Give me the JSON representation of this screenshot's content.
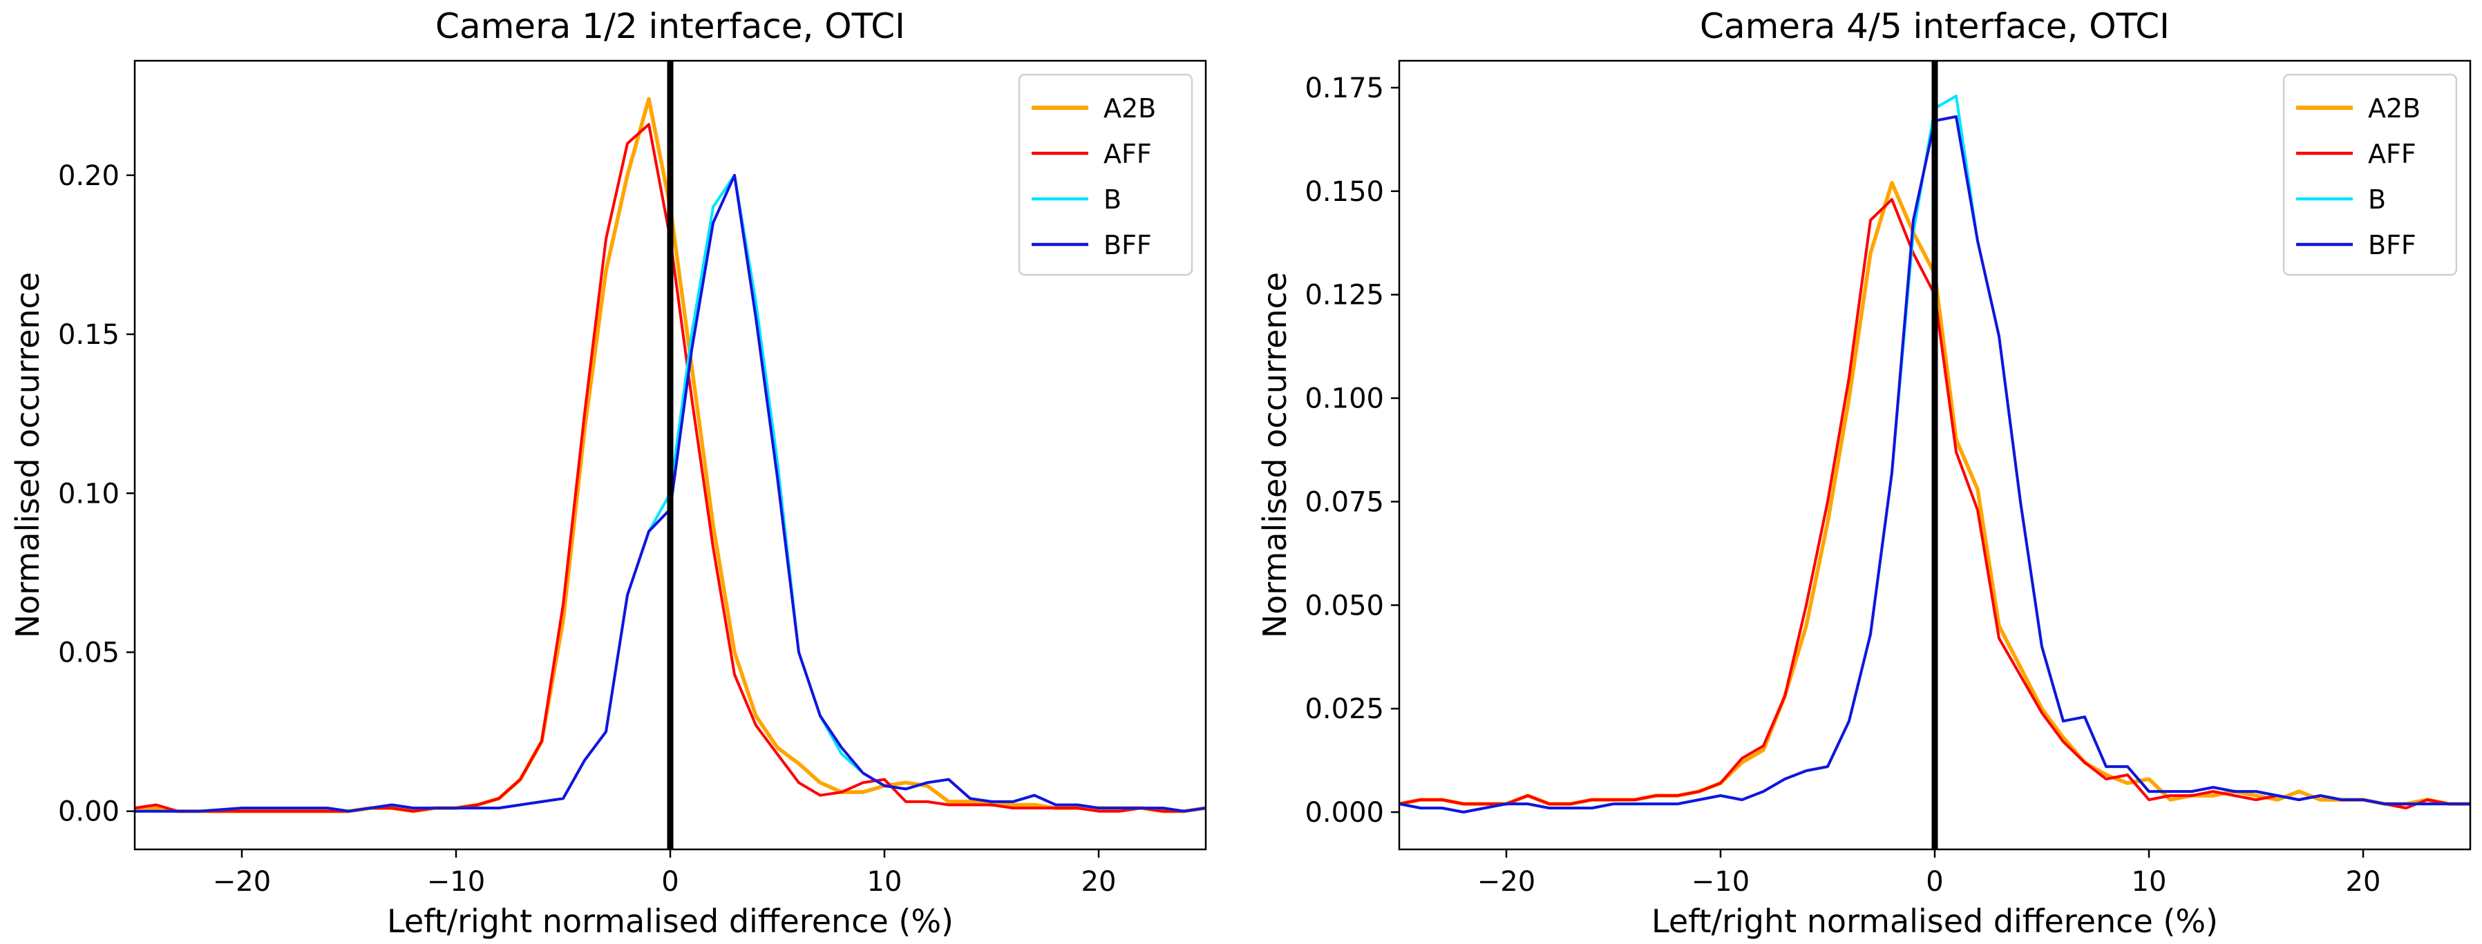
{
  "chart_data": [
    {
      "type": "line",
      "title": "Camera 1/2 interface, OTCI",
      "xlabel": "Left/right normalised difference (%)",
      "ylabel": "Normalised occurrence",
      "xlim": [
        -25,
        25
      ],
      "ylim": [
        -0.012,
        0.236
      ],
      "xticks": [
        -20,
        -10,
        0,
        10,
        20
      ],
      "xtick_labels": [
        "−20",
        "−10",
        "0",
        "10",
        "20"
      ],
      "yticks": [
        0.0,
        0.05,
        0.1,
        0.15,
        0.2
      ],
      "ytick_labels": [
        "0.00",
        "0.05",
        "0.10",
        "0.15",
        "0.20"
      ],
      "vline_x": 0,
      "grid": false,
      "legend_position": "top-right",
      "series": [
        {
          "name": "A2B",
          "color": "#ffa500",
          "x": [
            -25,
            -24,
            -23,
            -22,
            -20,
            -18,
            -16,
            -15,
            -14,
            -13,
            -12,
            -11,
            -10,
            -9,
            -8,
            -7,
            -6,
            -5,
            -4,
            -3,
            -2,
            -1,
            0,
            1,
            2,
            3,
            4,
            5,
            6,
            7,
            8,
            9,
            10,
            11,
            12,
            13,
            14,
            15,
            16,
            17,
            18,
            19,
            20,
            21,
            22,
            23,
            24,
            25
          ],
          "y": [
            0.001,
            0.001,
            0.0,
            0.0,
            0.0,
            0.0,
            0.0,
            0.0,
            0.001,
            0.001,
            0.0,
            0.001,
            0.001,
            0.002,
            0.004,
            0.01,
            0.022,
            0.06,
            0.12,
            0.17,
            0.2,
            0.224,
            0.19,
            0.14,
            0.09,
            0.05,
            0.03,
            0.02,
            0.015,
            0.009,
            0.006,
            0.006,
            0.008,
            0.009,
            0.008,
            0.003,
            0.003,
            0.002,
            0.002,
            0.002,
            0.001,
            0.001,
            0.001,
            0.001,
            0.001,
            0.0,
            0.0,
            0.001
          ]
        },
        {
          "name": "AFF",
          "color": "#ff0000",
          "x": [
            -25,
            -24,
            -23,
            -22,
            -20,
            -18,
            -16,
            -15,
            -14,
            -13,
            -12,
            -11,
            -10,
            -9,
            -8,
            -7,
            -6,
            -5,
            -4,
            -3,
            -2,
            -1,
            0,
            1,
            2,
            3,
            4,
            5,
            6,
            7,
            8,
            9,
            10,
            11,
            12,
            13,
            14,
            15,
            16,
            17,
            18,
            19,
            20,
            21,
            22,
            23,
            24,
            25
          ],
          "y": [
            0.001,
            0.002,
            0.0,
            0.0,
            0.0,
            0.0,
            0.0,
            0.0,
            0.001,
            0.001,
            0.0,
            0.001,
            0.001,
            0.002,
            0.004,
            0.01,
            0.022,
            0.065,
            0.125,
            0.18,
            0.21,
            0.216,
            0.18,
            0.13,
            0.083,
            0.043,
            0.027,
            0.018,
            0.009,
            0.005,
            0.006,
            0.009,
            0.01,
            0.003,
            0.003,
            0.002,
            0.002,
            0.002,
            0.001,
            0.001,
            0.001,
            0.001,
            0.0,
            0.0,
            0.001,
            0.0,
            0.0,
            0.001
          ]
        },
        {
          "name": "B",
          "color": "#00e5ff",
          "x": [
            -25,
            -24,
            -23,
            -22,
            -20,
            -18,
            -16,
            -15,
            -14,
            -13,
            -12,
            -11,
            -10,
            -9,
            -8,
            -7,
            -6,
            -5,
            -4,
            -3,
            -2,
            -1,
            0,
            1,
            2,
            3,
            4,
            5,
            6,
            7,
            8,
            9,
            10,
            11,
            12,
            13,
            14,
            15,
            16,
            17,
            18,
            19,
            20,
            21,
            22,
            23,
            24,
            25
          ],
          "y": [
            0.0,
            0.0,
            0.0,
            0.0,
            0.001,
            0.001,
            0.001,
            0.0,
            0.001,
            0.002,
            0.001,
            0.001,
            0.001,
            0.001,
            0.001,
            0.002,
            0.003,
            0.004,
            0.016,
            0.025,
            0.068,
            0.088,
            0.1,
            0.15,
            0.19,
            0.2,
            0.16,
            0.11,
            0.05,
            0.03,
            0.018,
            0.012,
            0.008,
            0.007,
            0.009,
            0.01,
            0.004,
            0.003,
            0.003,
            0.005,
            0.002,
            0.002,
            0.001,
            0.001,
            0.001,
            0.001,
            0.0,
            0.001
          ]
        },
        {
          "name": "BFF",
          "color": "#1414dc",
          "x": [
            -25,
            -24,
            -23,
            -22,
            -20,
            -18,
            -16,
            -15,
            -14,
            -13,
            -12,
            -11,
            -10,
            -9,
            -8,
            -7,
            -6,
            -5,
            -4,
            -3,
            -2,
            -1,
            0,
            1,
            2,
            3,
            4,
            5,
            6,
            7,
            8,
            9,
            10,
            11,
            12,
            13,
            14,
            15,
            16,
            17,
            18,
            19,
            20,
            21,
            22,
            23,
            24,
            25
          ],
          "y": [
            0.0,
            0.0,
            0.0,
            0.0,
            0.001,
            0.001,
            0.001,
            0.0,
            0.001,
            0.002,
            0.001,
            0.001,
            0.001,
            0.001,
            0.001,
            0.002,
            0.003,
            0.004,
            0.016,
            0.025,
            0.068,
            0.088,
            0.095,
            0.145,
            0.185,
            0.2,
            0.155,
            0.105,
            0.05,
            0.03,
            0.02,
            0.012,
            0.008,
            0.007,
            0.009,
            0.01,
            0.004,
            0.003,
            0.003,
            0.005,
            0.002,
            0.002,
            0.001,
            0.001,
            0.001,
            0.001,
            0.0,
            0.001
          ]
        }
      ]
    },
    {
      "type": "line",
      "title": "Camera 4/5 interface, OTCI",
      "xlabel": "Left/right normalised difference (%)",
      "ylabel": "Normalised occurrence",
      "xlim": [
        -25,
        25
      ],
      "ylim": [
        -0.009,
        0.1815
      ],
      "xticks": [
        -20,
        -10,
        0,
        10,
        20
      ],
      "xtick_labels": [
        "−20",
        "−10",
        "0",
        "10",
        "20"
      ],
      "yticks": [
        0.0,
        0.025,
        0.05,
        0.075,
        0.1,
        0.125,
        0.15,
        0.175
      ],
      "ytick_labels": [
        "0.000",
        "0.025",
        "0.050",
        "0.075",
        "0.100",
        "0.125",
        "0.150",
        "0.175"
      ],
      "vline_x": 0,
      "grid": false,
      "legend_position": "top-right",
      "series": [
        {
          "name": "A2B",
          "color": "#ffa500",
          "x": [
            -25,
            -24,
            -23,
            -22,
            -20,
            -19,
            -18,
            -17,
            -16,
            -15,
            -14,
            -13,
            -12,
            -11,
            -10,
            -9,
            -8,
            -7,
            -6,
            -5,
            -4,
            -3,
            -2,
            -1,
            0,
            1,
            2,
            3,
            4,
            5,
            6,
            7,
            8,
            9,
            10,
            11,
            12,
            13,
            14,
            15,
            16,
            17,
            18,
            19,
            20,
            21,
            22,
            23,
            24,
            25
          ],
          "y": [
            0.002,
            0.003,
            0.003,
            0.002,
            0.002,
            0.004,
            0.002,
            0.002,
            0.003,
            0.003,
            0.003,
            0.004,
            0.004,
            0.005,
            0.007,
            0.012,
            0.015,
            0.028,
            0.045,
            0.07,
            0.1,
            0.135,
            0.152,
            0.14,
            0.13,
            0.09,
            0.078,
            0.045,
            0.035,
            0.025,
            0.018,
            0.012,
            0.009,
            0.007,
            0.008,
            0.003,
            0.004,
            0.004,
            0.005,
            0.004,
            0.003,
            0.005,
            0.003,
            0.003,
            0.003,
            0.002,
            0.002,
            0.003,
            0.002,
            0.002
          ]
        },
        {
          "name": "AFF",
          "color": "#ff0000",
          "x": [
            -25,
            -24,
            -23,
            -22,
            -20,
            -19,
            -18,
            -17,
            -16,
            -15,
            -14,
            -13,
            -12,
            -11,
            -10,
            -9,
            -8,
            -7,
            -6,
            -5,
            -4,
            -3,
            -2,
            -1,
            0,
            1,
            2,
            3,
            4,
            5,
            6,
            7,
            8,
            9,
            10,
            11,
            12,
            13,
            14,
            15,
            16,
            17,
            18,
            19,
            20,
            21,
            22,
            23,
            24,
            25
          ],
          "y": [
            0.002,
            0.003,
            0.003,
            0.002,
            0.002,
            0.004,
            0.002,
            0.002,
            0.003,
            0.003,
            0.003,
            0.004,
            0.004,
            0.005,
            0.007,
            0.013,
            0.016,
            0.028,
            0.05,
            0.075,
            0.105,
            0.143,
            0.148,
            0.135,
            0.125,
            0.087,
            0.073,
            0.042,
            0.033,
            0.024,
            0.017,
            0.012,
            0.008,
            0.009,
            0.003,
            0.004,
            0.004,
            0.005,
            0.004,
            0.003,
            0.004,
            0.003,
            0.004,
            0.003,
            0.003,
            0.002,
            0.001,
            0.003,
            0.002,
            0.002
          ]
        },
        {
          "name": "B",
          "color": "#00e5ff",
          "x": [
            -25,
            -24,
            -23,
            -22,
            -20,
            -19,
            -18,
            -17,
            -16,
            -15,
            -14,
            -13,
            -12,
            -11,
            -10,
            -9,
            -8,
            -7,
            -6,
            -5,
            -4,
            -3,
            -2,
            -1,
            0,
            1,
            2,
            3,
            4,
            5,
            6,
            7,
            8,
            9,
            10,
            11,
            12,
            13,
            14,
            15,
            16,
            17,
            18,
            19,
            20,
            21,
            22,
            23,
            24,
            25
          ],
          "y": [
            0.002,
            0.001,
            0.001,
            0.0,
            0.002,
            0.002,
            0.001,
            0.001,
            0.001,
            0.002,
            0.002,
            0.002,
            0.002,
            0.003,
            0.004,
            0.003,
            0.005,
            0.008,
            0.01,
            0.011,
            0.022,
            0.043,
            0.082,
            0.14,
            0.17,
            0.173,
            0.138,
            0.115,
            0.075,
            0.04,
            0.022,
            0.023,
            0.011,
            0.011,
            0.005,
            0.005,
            0.005,
            0.006,
            0.005,
            0.005,
            0.004,
            0.003,
            0.004,
            0.003,
            0.003,
            0.002,
            0.002,
            0.002,
            0.002,
            0.002
          ]
        },
        {
          "name": "BFF",
          "color": "#1414dc",
          "x": [
            -25,
            -24,
            -23,
            -22,
            -20,
            -19,
            -18,
            -17,
            -16,
            -15,
            -14,
            -13,
            -12,
            -11,
            -10,
            -9,
            -8,
            -7,
            -6,
            -5,
            -4,
            -3,
            -2,
            -1,
            0,
            1,
            2,
            3,
            4,
            5,
            6,
            7,
            8,
            9,
            10,
            11,
            12,
            13,
            14,
            15,
            16,
            17,
            18,
            19,
            20,
            21,
            22,
            23,
            24,
            25
          ],
          "y": [
            0.002,
            0.001,
            0.001,
            0.0,
            0.002,
            0.002,
            0.001,
            0.001,
            0.001,
            0.002,
            0.002,
            0.002,
            0.002,
            0.003,
            0.004,
            0.003,
            0.005,
            0.008,
            0.01,
            0.011,
            0.022,
            0.043,
            0.082,
            0.143,
            0.167,
            0.168,
            0.138,
            0.115,
            0.075,
            0.04,
            0.022,
            0.023,
            0.011,
            0.011,
            0.005,
            0.005,
            0.005,
            0.006,
            0.005,
            0.005,
            0.004,
            0.003,
            0.004,
            0.003,
            0.003,
            0.002,
            0.002,
            0.002,
            0.002,
            0.002
          ]
        }
      ]
    }
  ]
}
